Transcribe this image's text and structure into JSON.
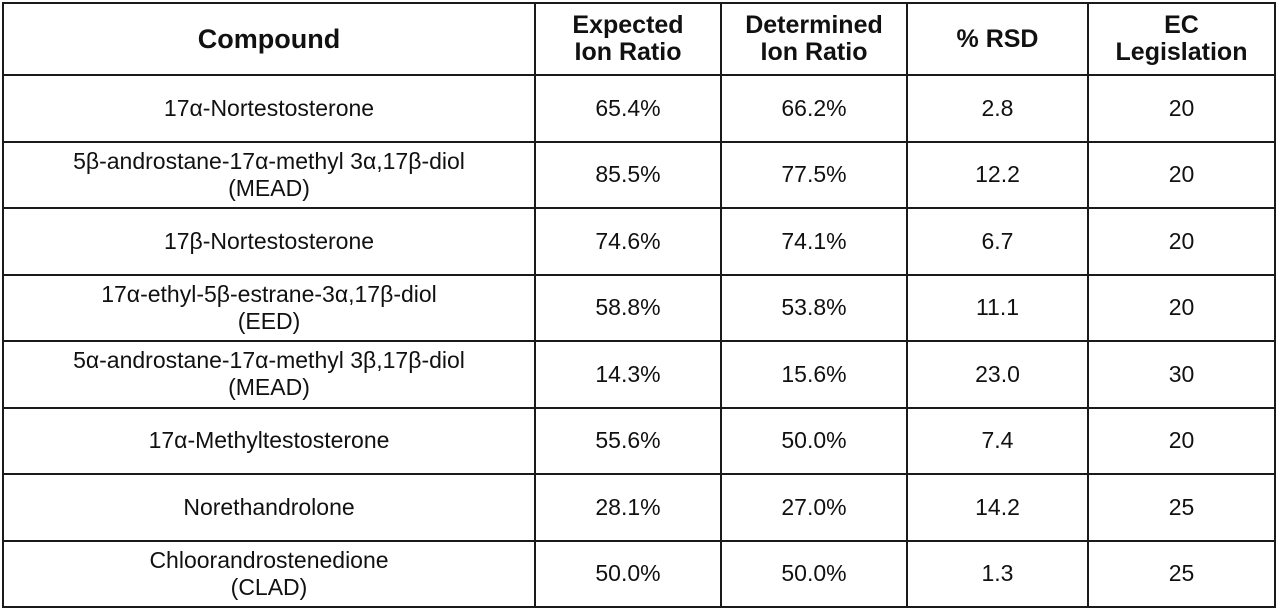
{
  "table": {
    "headers": {
      "compound": "Compound",
      "expected": [
        "Expected",
        "Ion Ratio"
      ],
      "determined": [
        "Determined",
        "Ion Ratio"
      ],
      "rsd": "% RSD",
      "ec": [
        "EC",
        "Legislation"
      ]
    },
    "rows": [
      {
        "compound": [
          "17α-Nortestosterone"
        ],
        "expected": "65.4%",
        "determined": "66.2%",
        "rsd": "2.8",
        "ec": "20"
      },
      {
        "compound": [
          "5β-androstane-17α-methyl 3α,17β-diol",
          "(MEAD)"
        ],
        "expected": "85.5%",
        "determined": "77.5%",
        "rsd": "12.2",
        "ec": "20"
      },
      {
        "compound": [
          "17β-Nortestosterone"
        ],
        "expected": "74.6%",
        "determined": "74.1%",
        "rsd": "6.7",
        "ec": "20"
      },
      {
        "compound": [
          "17α-ethyl-5β-estrane-3α,17β-diol",
          "(EED)"
        ],
        "expected": "58.8%",
        "determined": "53.8%",
        "rsd": "11.1",
        "ec": "20"
      },
      {
        "compound": [
          "5α-androstane-17α-methyl 3β,17β-diol",
          "(MEAD)"
        ],
        "expected": "14.3%",
        "determined": "15.6%",
        "rsd": "23.0",
        "ec": "30"
      },
      {
        "compound": [
          "17α-Methyltestosterone"
        ],
        "expected": "55.6%",
        "determined": "50.0%",
        "rsd": "7.4",
        "ec": "20"
      },
      {
        "compound": [
          "Norethandrolone"
        ],
        "expected": "28.1%",
        "determined": "27.0%",
        "rsd": "14.2",
        "ec": "25"
      },
      {
        "compound": [
          "Chloorandrostenedione",
          "(CLAD)"
        ],
        "expected": "50.0%",
        "determined": "50.0%",
        "rsd": "1.3",
        "ec": "25"
      }
    ]
  }
}
